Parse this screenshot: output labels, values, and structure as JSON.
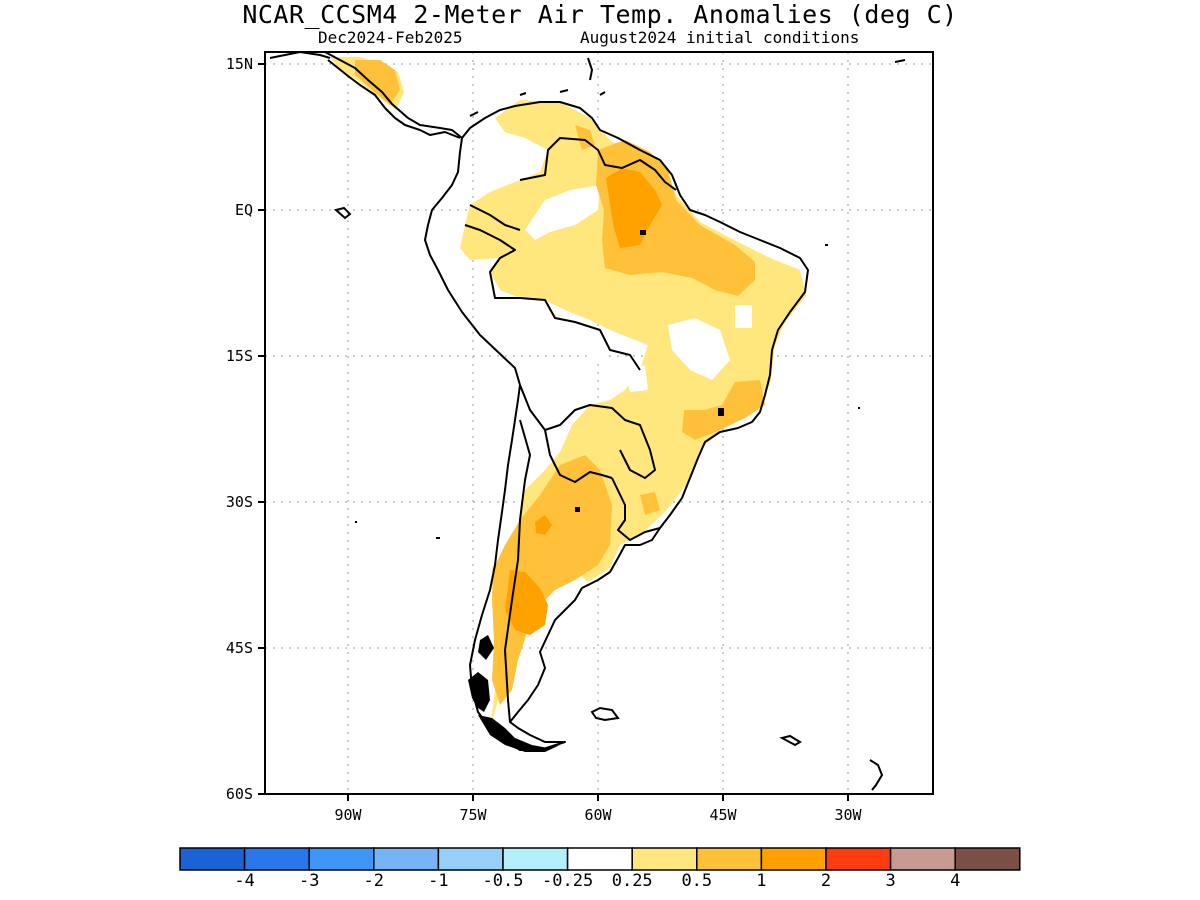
{
  "header": {
    "title": "NCAR_CCSM4 2-Meter Air Temp. Anomalies (deg C)",
    "season": "Dec2024-Feb2025",
    "init": "August2024 initial conditions"
  },
  "map": {
    "lon_range": [
      -103,
      -23
    ],
    "lat_range": [
      -60,
      15
    ],
    "lat_ticks": [
      {
        "value": 15,
        "label": "15N"
      },
      {
        "value": 0,
        "label": "EQ"
      },
      {
        "value": -15,
        "label": "15S"
      },
      {
        "value": -30,
        "label": "30S"
      },
      {
        "value": -45,
        "label": "45S"
      },
      {
        "value": -60,
        "label": "60S"
      }
    ],
    "lon_ticks": [
      {
        "value": -90,
        "label": "90W"
      },
      {
        "value": -75,
        "label": "75W"
      },
      {
        "value": -60,
        "label": "60W"
      },
      {
        "value": -45,
        "label": "45W"
      },
      {
        "value": -30,
        "label": "30W"
      }
    ]
  },
  "legend": {
    "colors": [
      "#1a62d6",
      "#2878ec",
      "#3f97f5",
      "#76b4f7",
      "#96cff8",
      "#b2eff8",
      "#ffffff",
      "#ffe67d",
      "#ffc13a",
      "#ffa200",
      "#ff3b10",
      "#c99a90",
      "#7a4f44"
    ],
    "labels": [
      "-4",
      "-3",
      "-2",
      "-1",
      "-0.5",
      "-0.25",
      "0.25",
      "0.5",
      "1",
      "2",
      "3",
      "4"
    ]
  }
}
